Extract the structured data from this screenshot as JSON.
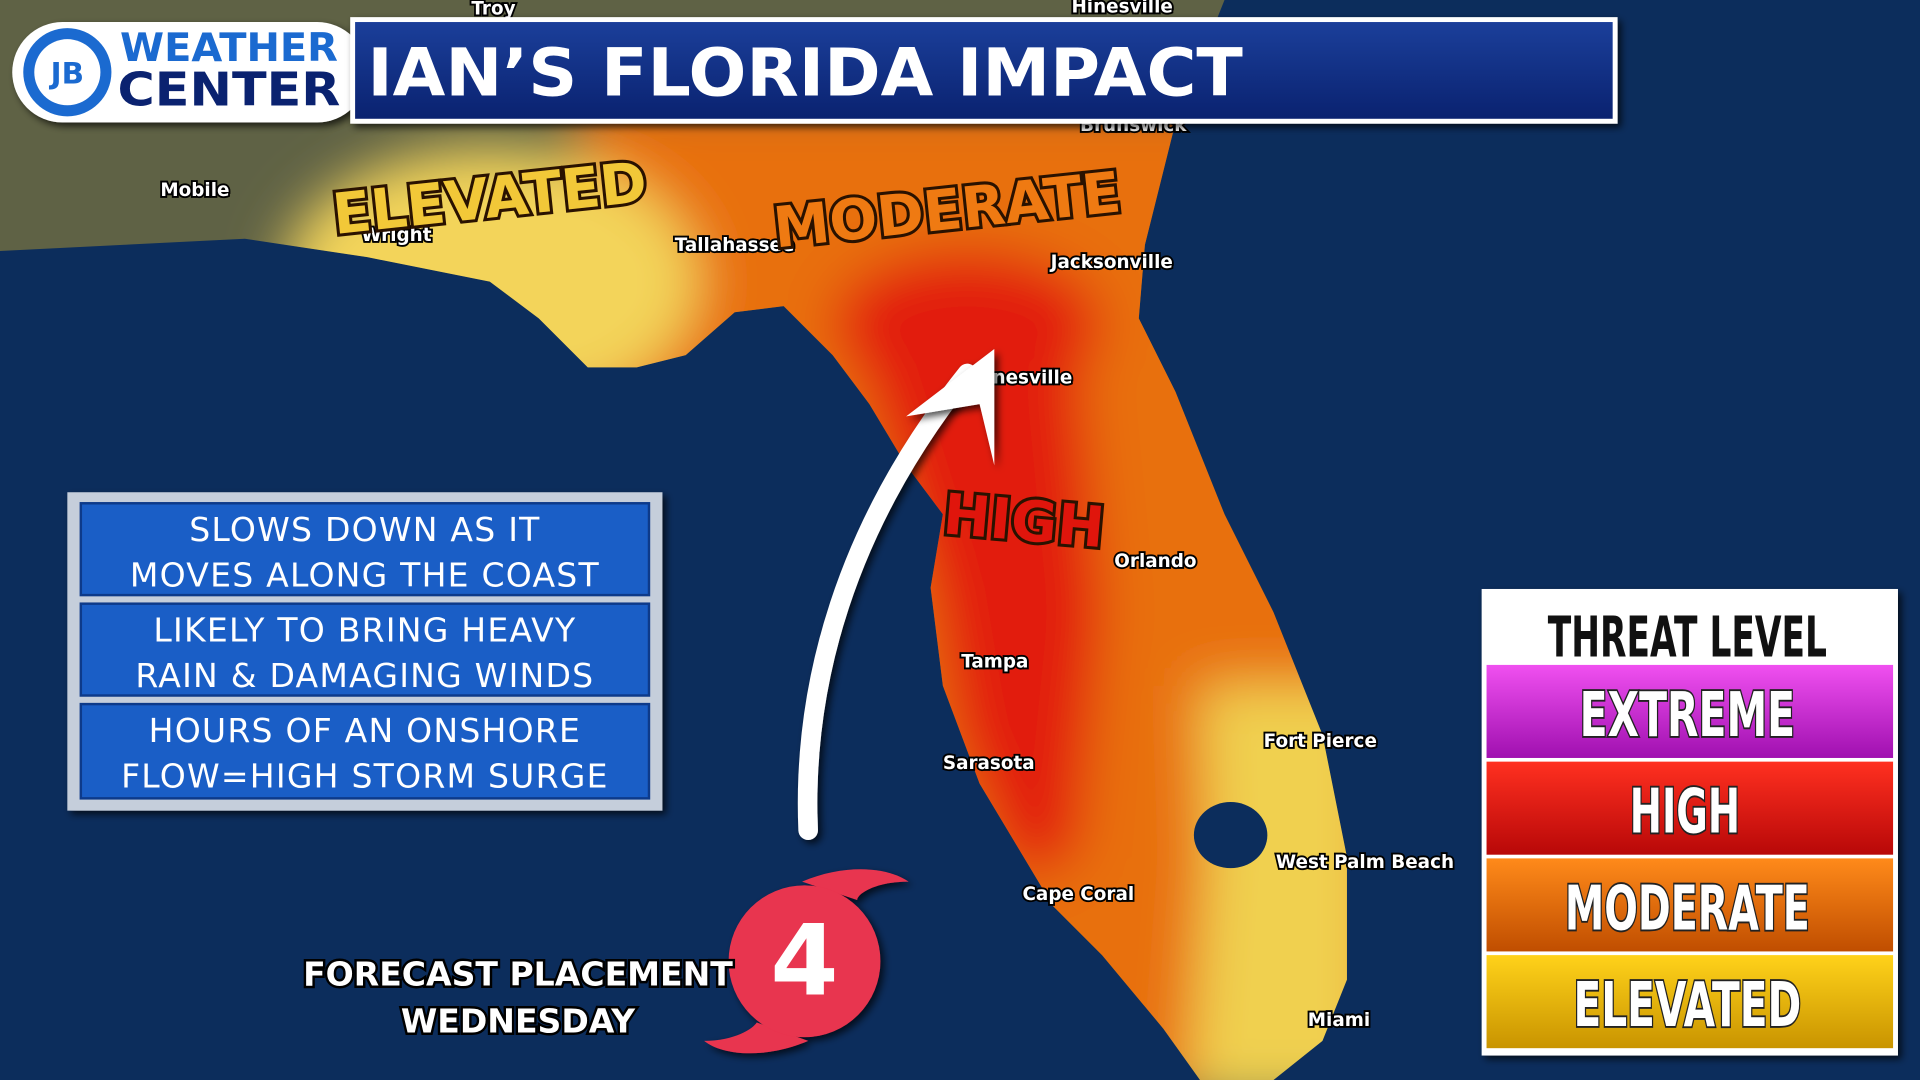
{
  "logo": {
    "initials": "JB",
    "line1": "WEATHER",
    "line2": "CENTER"
  },
  "title": "IAN’S FLORIDA IMPACT",
  "cities": [
    "Troy",
    "Hinesville",
    "Brunswick",
    "Mobile",
    "Wright",
    "Tallahassee",
    "Jacksonville",
    "Gainesville",
    "Orlando",
    "Tampa",
    "Sarasota",
    "Fort Pierce",
    "West Palm Beach",
    "Cape Coral",
    "Miami"
  ],
  "threat_labels": [
    "ELEVATED",
    "MODERATE",
    "HIGH"
  ],
  "info": [
    [
      "SLOWS DOWN AS IT",
      "MOVES ALONG THE COAST"
    ],
    [
      "LIKELY TO BRING HEAVY",
      "RAIN & DAMAGING WINDS"
    ],
    [
      "HOURS OF AN ONSHORE",
      "FLOW=HIGH STORM SURGE"
    ]
  ],
  "forecast": {
    "category": "4",
    "lines": [
      "FORECAST PLACEMENT",
      "WEDNESDAY"
    ]
  },
  "legend": {
    "title": "THREAT LEVEL",
    "levels": [
      "EXTREME",
      "HIGH",
      "MODERATE",
      "ELEVATED"
    ]
  }
}
